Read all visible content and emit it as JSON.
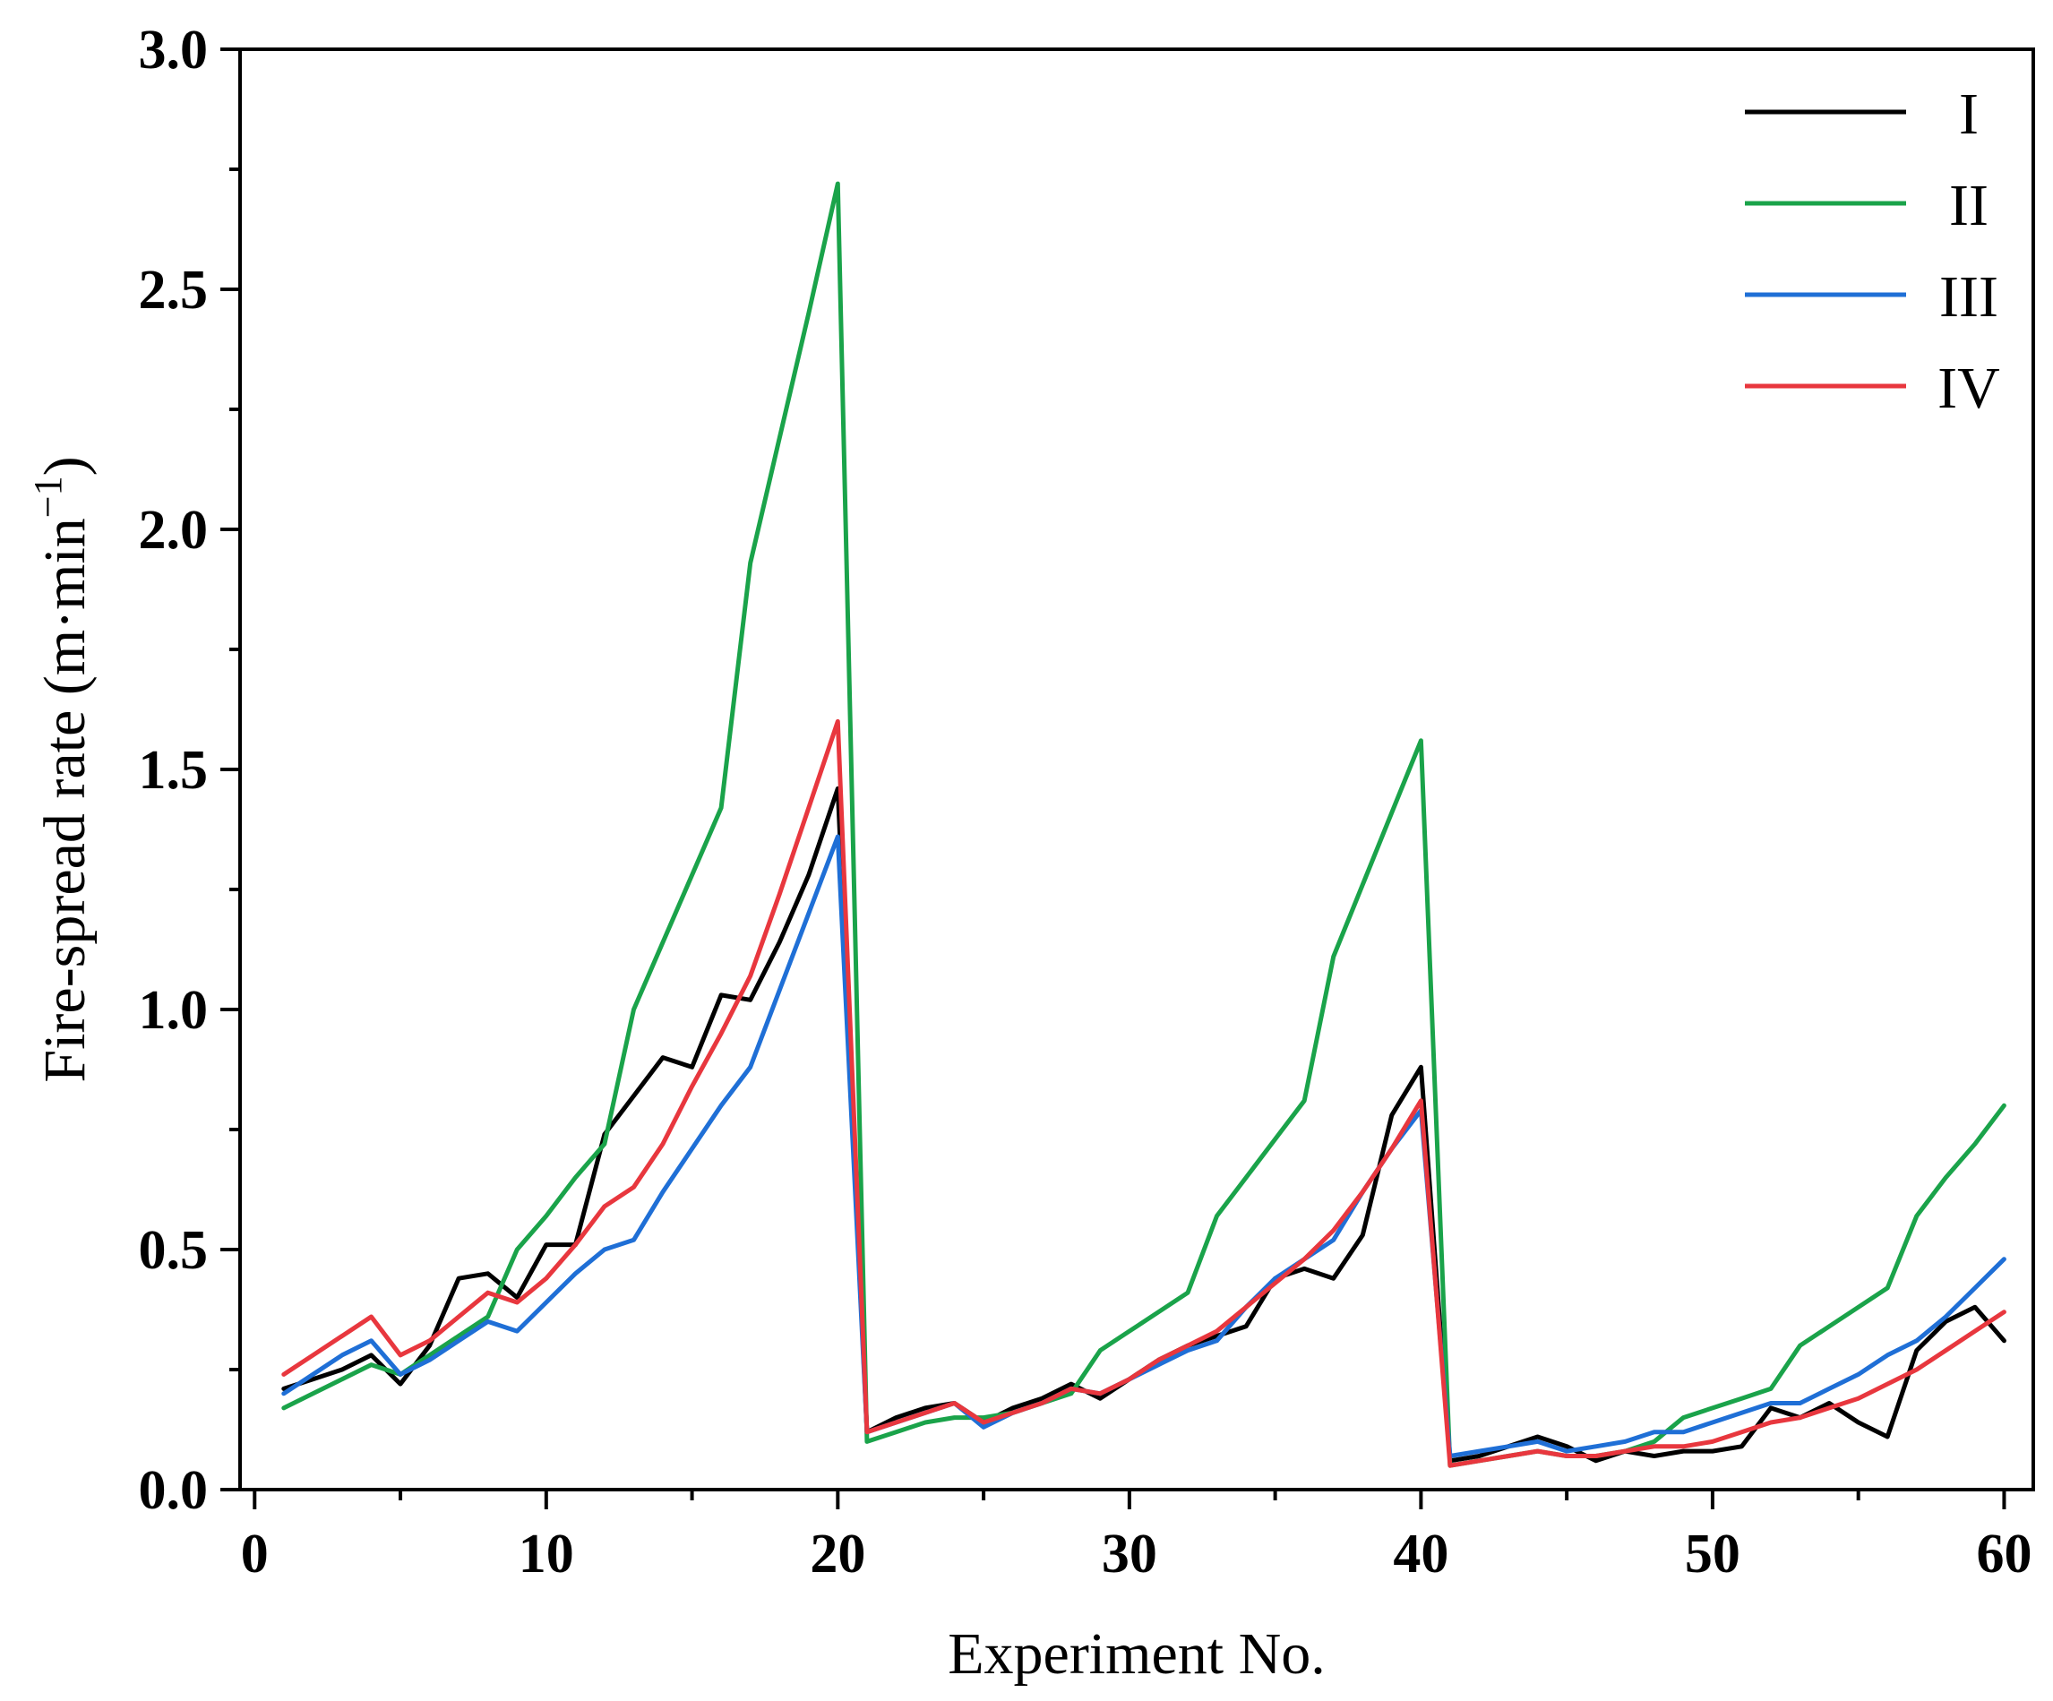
{
  "chart_data": {
    "type": "line",
    "title": "",
    "xlabel": "Experiment No.",
    "ylabel_main": "Fire-spread rate (m·min",
    "ylabel_sup": "−1",
    "ylabel_close": ")",
    "xlim": [
      -0.5,
      61
    ],
    "ylim": [
      0,
      3.0
    ],
    "xticks": [
      0,
      10,
      20,
      30,
      40,
      50,
      60
    ],
    "xtick_labels": [
      "0",
      "10",
      "20",
      "30",
      "40",
      "50",
      "60"
    ],
    "yticks": [
      0,
      0.5,
      1.0,
      1.5,
      2.0,
      2.5,
      3.0
    ],
    "ytick_labels": [
      "0.0",
      "0.5",
      "1.0",
      "1.5",
      "2.0",
      "2.5",
      "3.0"
    ],
    "grid": false,
    "legend_position": "top-right",
    "x": [
      1,
      2,
      3,
      4,
      5,
      6,
      7,
      8,
      9,
      10,
      11,
      12,
      13,
      14,
      15,
      16,
      17,
      18,
      19,
      20,
      21,
      22,
      23,
      24,
      25,
      26,
      27,
      28,
      29,
      30,
      31,
      32,
      33,
      34,
      35,
      36,
      37,
      38,
      39,
      40,
      41,
      42,
      43,
      44,
      45,
      46,
      47,
      48,
      49,
      50,
      51,
      52,
      53,
      54,
      55,
      56,
      57,
      58,
      59,
      60
    ],
    "series": [
      {
        "name": "I",
        "color": "#000000",
        "values": [
          0.21,
          0.23,
          0.25,
          0.28,
          0.22,
          0.3,
          0.44,
          0.45,
          0.4,
          0.51,
          0.51,
          0.74,
          0.82,
          0.9,
          0.88,
          1.03,
          1.02,
          1.14,
          1.28,
          1.46,
          0.12,
          0.15,
          0.17,
          0.18,
          0.14,
          0.17,
          0.19,
          0.22,
          0.19,
          0.23,
          0.27,
          0.3,
          0.32,
          0.34,
          0.44,
          0.46,
          0.44,
          0.53,
          0.78,
          0.88,
          0.06,
          0.07,
          0.09,
          0.11,
          0.09,
          0.06,
          0.08,
          0.07,
          0.08,
          0.08,
          0.09,
          0.17,
          0.15,
          0.18,
          0.14,
          0.11,
          0.29,
          0.35,
          0.38,
          0.31
        ]
      },
      {
        "name": "II",
        "color": "#1aa34a",
        "values": [
          0.17,
          0.2,
          0.23,
          0.26,
          0.24,
          0.28,
          0.32,
          0.36,
          0.5,
          0.57,
          0.65,
          0.72,
          1.0,
          1.14,
          1.28,
          1.42,
          1.93,
          2.19,
          2.45,
          2.72,
          0.1,
          0.12,
          0.14,
          0.15,
          0.15,
          0.16,
          0.18,
          0.2,
          0.29,
          0.33,
          0.37,
          0.41,
          0.57,
          0.65,
          0.73,
          0.81,
          1.11,
          1.26,
          1.41,
          1.56,
          0.05,
          0.06,
          0.07,
          0.08,
          0.07,
          0.07,
          0.08,
          0.1,
          0.15,
          0.17,
          0.19,
          0.21,
          0.3,
          0.34,
          0.38,
          0.42,
          0.57,
          0.65,
          0.72,
          0.8
        ]
      },
      {
        "name": "III",
        "color": "#1f6fd6",
        "values": [
          0.2,
          0.24,
          0.28,
          0.31,
          0.24,
          0.27,
          0.31,
          0.35,
          0.33,
          0.39,
          0.45,
          0.5,
          0.52,
          0.62,
          0.71,
          0.8,
          0.88,
          1.04,
          1.2,
          1.36,
          0.12,
          0.14,
          0.16,
          0.18,
          0.13,
          0.16,
          0.18,
          0.21,
          0.2,
          0.23,
          0.26,
          0.29,
          0.31,
          0.38,
          0.44,
          0.48,
          0.52,
          0.62,
          0.71,
          0.79,
          0.07,
          0.08,
          0.09,
          0.1,
          0.08,
          0.09,
          0.1,
          0.12,
          0.12,
          0.14,
          0.16,
          0.18,
          0.18,
          0.21,
          0.24,
          0.28,
          0.31,
          0.36,
          0.42,
          0.48
        ]
      },
      {
        "name": "IV",
        "color": "#e8373e",
        "values": [
          0.24,
          0.28,
          0.32,
          0.36,
          0.28,
          0.31,
          0.36,
          0.41,
          0.39,
          0.44,
          0.51,
          0.59,
          0.63,
          0.72,
          0.84,
          0.95,
          1.07,
          1.24,
          1.42,
          1.6,
          0.12,
          0.14,
          0.16,
          0.18,
          0.14,
          0.16,
          0.18,
          0.21,
          0.2,
          0.23,
          0.27,
          0.3,
          0.33,
          0.38,
          0.43,
          0.48,
          0.54,
          0.62,
          0.71,
          0.81,
          0.05,
          0.06,
          0.07,
          0.08,
          0.07,
          0.07,
          0.08,
          0.09,
          0.09,
          0.1,
          0.12,
          0.14,
          0.15,
          0.17,
          0.19,
          0.22,
          0.25,
          0.29,
          0.33,
          0.37
        ]
      }
    ]
  }
}
